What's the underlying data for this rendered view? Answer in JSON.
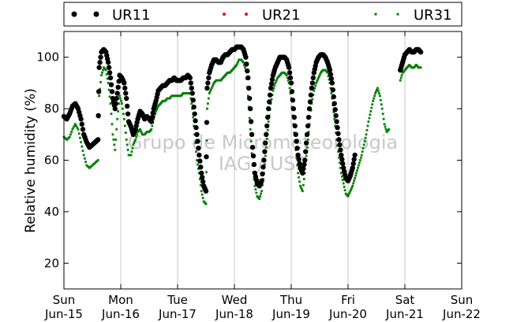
{
  "chart_data": {
    "type": "scatter",
    "ylabel": "Relative humidity (%)",
    "xlabel": "",
    "ylim": [
      10,
      110
    ],
    "yticks": [
      20,
      40,
      60,
      80,
      100
    ],
    "x_days": [
      "Sun",
      "Mon",
      "Tue",
      "Wed",
      "Thu",
      "Fri",
      "Sat",
      "Sun"
    ],
    "x_dates": [
      "Jun-15",
      "Jun-16",
      "Jun-17",
      "Jun-18",
      "Jun-19",
      "Jun-20",
      "Jun-21",
      "Jun-22"
    ],
    "grid": "vertical",
    "legend_position": "top",
    "watermark": [
      "Grupo de Micrometeorologia",
      "IAG / USP"
    ],
    "series": [
      {
        "name": "UR11",
        "color": "#000000",
        "marker": "large-dot",
        "points": [
          [
            0.0,
            77
          ],
          [
            0.05,
            76
          ],
          [
            0.1,
            78
          ],
          [
            0.15,
            81
          ],
          [
            0.2,
            82
          ],
          [
            0.25,
            80
          ],
          [
            0.3,
            76
          ],
          [
            0.35,
            70
          ],
          [
            0.4,
            67
          ],
          [
            0.45,
            65
          ],
          [
            0.5,
            66
          ],
          [
            0.55,
            67
          ],
          [
            0.6,
            68
          ],
          [
            0.62,
            96
          ],
          [
            0.66,
            102
          ],
          [
            0.7,
            103
          ],
          [
            0.74,
            102
          ],
          [
            0.78,
            98
          ],
          [
            0.82,
            92
          ],
          [
            0.86,
            84
          ],
          [
            0.9,
            80
          ],
          [
            0.94,
            86
          ],
          [
            0.98,
            93
          ],
          [
            1.02,
            92
          ],
          [
            1.06,
            90
          ],
          [
            1.1,
            84
          ],
          [
            1.14,
            75
          ],
          [
            1.18,
            73
          ],
          [
            1.22,
            70
          ],
          [
            1.26,
            72
          ],
          [
            1.3,
            76
          ],
          [
            1.34,
            79
          ],
          [
            1.38,
            78
          ],
          [
            1.42,
            76
          ],
          [
            1.46,
            77
          ],
          [
            1.5,
            76
          ],
          [
            1.54,
            75
          ],
          [
            1.58,
            80
          ],
          [
            1.62,
            83
          ],
          [
            1.66,
            87
          ],
          [
            1.7,
            88
          ],
          [
            1.74,
            89
          ],
          [
            1.78,
            89
          ],
          [
            1.82,
            90
          ],
          [
            1.86,
            91
          ],
          [
            1.9,
            91
          ],
          [
            1.94,
            92
          ],
          [
            1.98,
            91
          ],
          [
            2.02,
            91
          ],
          [
            2.06,
            91
          ],
          [
            2.1,
            92
          ],
          [
            2.14,
            92
          ],
          [
            2.18,
            93
          ],
          [
            2.22,
            92
          ],
          [
            2.26,
            86
          ],
          [
            2.3,
            78
          ],
          [
            2.34,
            70
          ],
          [
            2.38,
            62
          ],
          [
            2.42,
            55
          ],
          [
            2.46,
            50
          ],
          [
            2.5,
            48
          ],
          [
            2.52,
            88
          ],
          [
            2.56,
            94
          ],
          [
            2.6,
            97
          ],
          [
            2.64,
            99
          ],
          [
            2.68,
            99
          ],
          [
            2.72,
            98
          ],
          [
            2.76,
            98
          ],
          [
            2.8,
            100
          ],
          [
            2.84,
            101
          ],
          [
            2.88,
            101
          ],
          [
            2.92,
            102
          ],
          [
            2.96,
            103
          ],
          [
            3.0,
            103
          ],
          [
            3.04,
            104
          ],
          [
            3.08,
            104
          ],
          [
            3.12,
            104
          ],
          [
            3.16,
            103
          ],
          [
            3.2,
            100
          ],
          [
            3.24,
            92
          ],
          [
            3.28,
            80
          ],
          [
            3.32,
            65
          ],
          [
            3.36,
            55
          ],
          [
            3.4,
            51
          ],
          [
            3.44,
            50
          ],
          [
            3.48,
            52
          ],
          [
            3.52,
            60
          ],
          [
            3.56,
            70
          ],
          [
            3.6,
            80
          ],
          [
            3.64,
            88
          ],
          [
            3.68,
            93
          ],
          [
            3.72,
            96
          ],
          [
            3.76,
            98
          ],
          [
            3.8,
            100
          ],
          [
            3.84,
            100
          ],
          [
            3.88,
            100
          ],
          [
            3.92,
            99
          ],
          [
            3.96,
            96
          ],
          [
            4.0,
            90
          ],
          [
            4.04,
            80
          ],
          [
            4.08,
            70
          ],
          [
            4.12,
            62
          ],
          [
            4.16,
            57
          ],
          [
            4.2,
            55
          ],
          [
            4.24,
            60
          ],
          [
            4.28,
            70
          ],
          [
            4.32,
            80
          ],
          [
            4.36,
            88
          ],
          [
            4.4,
            94
          ],
          [
            4.44,
            98
          ],
          [
            4.48,
            100
          ],
          [
            4.52,
            101
          ],
          [
            4.56,
            101
          ],
          [
            4.6,
            100
          ],
          [
            4.64,
            98
          ],
          [
            4.68,
            95
          ],
          [
            4.72,
            90
          ],
          [
            4.76,
            82
          ],
          [
            4.8,
            75
          ],
          [
            4.84,
            68
          ],
          [
            4.88,
            62
          ],
          [
            4.92,
            57
          ],
          [
            4.96,
            53
          ],
          [
            5.0,
            52
          ],
          [
            5.04,
            54
          ],
          [
            5.08,
            57
          ],
          [
            5.12,
            62
          ],
          [
            5.92,
            95
          ],
          [
            5.96,
            98
          ],
          [
            6.0,
            101
          ],
          [
            6.04,
            102
          ],
          [
            6.08,
            103
          ],
          [
            6.12,
            102
          ],
          [
            6.16,
            102
          ],
          [
            6.2,
            103
          ],
          [
            6.24,
            103
          ],
          [
            6.28,
            102
          ]
        ]
      },
      {
        "name": "UR21",
        "color": "#ff0000",
        "marker": "small-dot",
        "points": []
      },
      {
        "name": "UR31",
        "color": "#008000",
        "marker": "small-square",
        "points": [
          [
            0.0,
            69
          ],
          [
            0.05,
            68
          ],
          [
            0.1,
            69
          ],
          [
            0.15,
            72
          ],
          [
            0.2,
            74
          ],
          [
            0.25,
            72
          ],
          [
            0.3,
            67
          ],
          [
            0.35,
            62
          ],
          [
            0.4,
            58
          ],
          [
            0.45,
            57
          ],
          [
            0.5,
            58
          ],
          [
            0.55,
            59
          ],
          [
            0.6,
            60
          ],
          [
            0.62,
            85
          ],
          [
            0.66,
            93
          ],
          [
            0.7,
            96
          ],
          [
            0.74,
            95
          ],
          [
            0.78,
            90
          ],
          [
            0.82,
            82
          ],
          [
            0.86,
            70
          ],
          [
            0.9,
            64
          ],
          [
            0.94,
            76
          ],
          [
            0.98,
            85
          ],
          [
            1.02,
            82
          ],
          [
            1.06,
            76
          ],
          [
            1.1,
            68
          ],
          [
            1.14,
            62
          ],
          [
            1.18,
            62
          ],
          [
            1.22,
            66
          ],
          [
            1.26,
            68
          ],
          [
            1.3,
            71
          ],
          [
            1.34,
            72
          ],
          [
            1.38,
            70
          ],
          [
            1.42,
            70
          ],
          [
            1.46,
            71
          ],
          [
            1.5,
            71
          ],
          [
            1.54,
            72
          ],
          [
            1.58,
            76
          ],
          [
            1.62,
            79
          ],
          [
            1.66,
            81
          ],
          [
            1.7,
            82
          ],
          [
            1.74,
            83
          ],
          [
            1.78,
            83
          ],
          [
            1.82,
            84
          ],
          [
            1.86,
            84
          ],
          [
            1.9,
            85
          ],
          [
            1.94,
            85
          ],
          [
            1.98,
            85
          ],
          [
            2.02,
            85
          ],
          [
            2.06,
            85
          ],
          [
            2.1,
            86
          ],
          [
            2.14,
            86
          ],
          [
            2.18,
            86
          ],
          [
            2.22,
            86
          ],
          [
            2.26,
            80
          ],
          [
            2.3,
            70
          ],
          [
            2.34,
            60
          ],
          [
            2.38,
            55
          ],
          [
            2.42,
            48
          ],
          [
            2.46,
            44
          ],
          [
            2.5,
            43
          ],
          [
            2.52,
            80
          ],
          [
            2.56,
            86
          ],
          [
            2.6,
            88
          ],
          [
            2.64,
            90
          ],
          [
            2.68,
            91
          ],
          [
            2.72,
            91
          ],
          [
            2.76,
            91
          ],
          [
            2.8,
            92
          ],
          [
            2.84,
            93
          ],
          [
            2.88,
            94
          ],
          [
            2.92,
            94
          ],
          [
            2.96,
            95
          ],
          [
            3.0,
            96
          ],
          [
            3.04,
            97
          ],
          [
            3.08,
            99
          ],
          [
            3.12,
            99
          ],
          [
            3.16,
            98
          ],
          [
            3.2,
            95
          ],
          [
            3.24,
            85
          ],
          [
            3.28,
            72
          ],
          [
            3.32,
            58
          ],
          [
            3.36,
            50
          ],
          [
            3.4,
            46
          ],
          [
            3.44,
            45
          ],
          [
            3.48,
            48
          ],
          [
            3.52,
            55
          ],
          [
            3.56,
            65
          ],
          [
            3.6,
            75
          ],
          [
            3.64,
            82
          ],
          [
            3.68,
            87
          ],
          [
            3.72,
            90
          ],
          [
            3.76,
            92
          ],
          [
            3.8,
            93
          ],
          [
            3.84,
            94
          ],
          [
            3.88,
            94
          ],
          [
            3.92,
            93
          ],
          [
            3.96,
            90
          ],
          [
            4.0,
            84
          ],
          [
            4.04,
            74
          ],
          [
            4.08,
            64
          ],
          [
            4.12,
            55
          ],
          [
            4.16,
            50
          ],
          [
            4.2,
            48
          ],
          [
            4.24,
            55
          ],
          [
            4.28,
            65
          ],
          [
            4.32,
            74
          ],
          [
            4.36,
            82
          ],
          [
            4.4,
            87
          ],
          [
            4.44,
            90
          ],
          [
            4.48,
            92
          ],
          [
            4.52,
            94
          ],
          [
            4.56,
            95
          ],
          [
            4.6,
            95
          ],
          [
            4.64,
            94
          ],
          [
            4.68,
            90
          ],
          [
            4.72,
            84
          ],
          [
            4.76,
            76
          ],
          [
            4.8,
            68
          ],
          [
            4.84,
            61
          ],
          [
            4.88,
            55
          ],
          [
            4.92,
            51
          ],
          [
            4.96,
            47
          ],
          [
            5.0,
            46
          ],
          [
            5.04,
            48
          ],
          [
            5.08,
            50
          ],
          [
            5.12,
            53
          ],
          [
            5.16,
            56
          ],
          [
            5.2,
            59
          ],
          [
            5.24,
            62
          ],
          [
            5.28,
            66
          ],
          [
            5.32,
            70
          ],
          [
            5.36,
            75
          ],
          [
            5.4,
            79
          ],
          [
            5.44,
            83
          ],
          [
            5.48,
            86
          ],
          [
            5.52,
            88
          ],
          [
            5.56,
            85
          ],
          [
            5.6,
            80
          ],
          [
            5.64,
            74
          ],
          [
            5.68,
            71
          ],
          [
            5.72,
            72
          ],
          [
            5.92,
            91
          ],
          [
            5.96,
            94
          ],
          [
            6.0,
            95
          ],
          [
            6.04,
            96
          ],
          [
            6.08,
            97
          ],
          [
            6.12,
            96
          ],
          [
            6.16,
            96
          ],
          [
            6.2,
            97
          ],
          [
            6.24,
            96
          ],
          [
            6.28,
            96
          ]
        ]
      }
    ]
  }
}
